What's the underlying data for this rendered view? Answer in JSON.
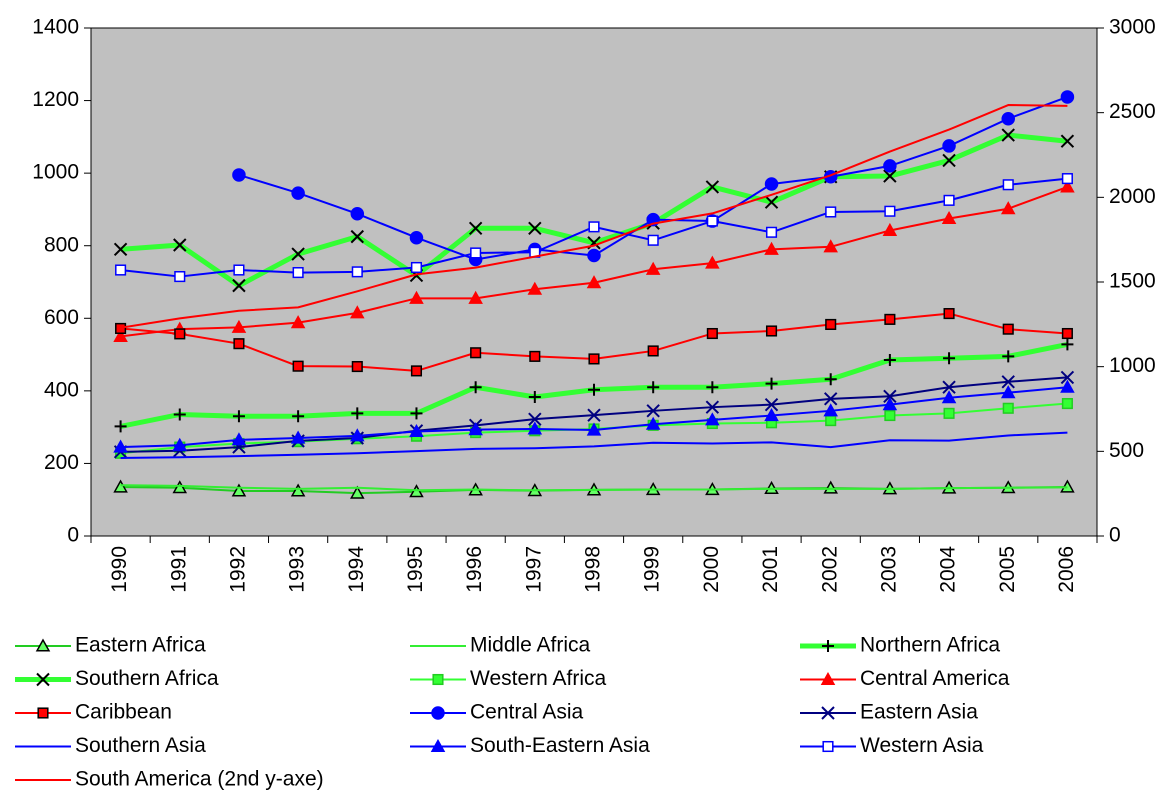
{
  "chart_data": {
    "type": "line",
    "categories": [
      "1990",
      "1991",
      "1992",
      "1993",
      "1994",
      "1995",
      "1996",
      "1997",
      "1998",
      "1999",
      "2000",
      "2001",
      "2002",
      "2003",
      "2004",
      "2005",
      "2006"
    ],
    "ylim": [
      0,
      1400
    ],
    "yticks": [
      0,
      200,
      400,
      600,
      800,
      1000,
      1200,
      1400
    ],
    "y2lim": [
      0,
      3000
    ],
    "y2ticks": [
      0,
      500,
      1000,
      1500,
      2000,
      2500,
      3000
    ],
    "plot_background": "#c0c0c0",
    "series": [
      {
        "name": "Eastern Africa",
        "color": "#22cc22",
        "width": 2,
        "marker": "triangle",
        "marker_fill": "#66ff66",
        "marker_edge": "#000000",
        "values": [
          135,
          133,
          124,
          124,
          118,
          122,
          127,
          125,
          127,
          128,
          128,
          131,
          132,
          130,
          132,
          133,
          135
        ]
      },
      {
        "name": "Middle Africa",
        "color": "#33ee33",
        "width": 2,
        "marker": "none",
        "values": [
          140,
          138,
          133,
          130,
          133,
          126,
          128,
          126,
          127,
          128,
          128,
          130,
          130,
          130,
          132,
          133,
          134
        ]
      },
      {
        "name": "Northern Africa",
        "color": "#33ff33",
        "width": 5,
        "marker": "plus",
        "marker_fill": "#000000",
        "marker_edge": "#000000",
        "values": [
          302,
          335,
          330,
          330,
          338,
          338,
          410,
          383,
          403,
          410,
          410,
          420,
          432,
          485,
          490,
          495,
          528
        ]
      },
      {
        "name": "Southern Africa",
        "color": "#33ff33",
        "width": 5,
        "marker": "x",
        "marker_fill": "#000000",
        "marker_edge": "#000000",
        "values": [
          790,
          802,
          690,
          777,
          825,
          718,
          848,
          848,
          808,
          862,
          962,
          920,
          990,
          992,
          1035,
          1105,
          1088
        ]
      },
      {
        "name": "Western Africa",
        "color": "#33ff33",
        "width": 2,
        "marker": "square",
        "marker_fill": "#33ff33",
        "marker_edge": "#22cc22",
        "values": [
          228,
          245,
          255,
          260,
          268,
          275,
          285,
          290,
          295,
          305,
          310,
          312,
          318,
          332,
          338,
          352,
          365
        ]
      },
      {
        "name": "Central America",
        "color": "#ff0000",
        "width": 2,
        "marker": "triangle",
        "marker_fill": "#ff0000",
        "marker_edge": "#ff0000",
        "values": [
          550,
          570,
          575,
          588,
          615,
          655,
          655,
          680,
          698,
          735,
          752,
          790,
          797,
          842,
          875,
          902,
          962
        ]
      },
      {
        "name": "Caribbean",
        "color": "#ff0000",
        "width": 2,
        "marker": "square",
        "marker_fill": "#ff0000",
        "marker_edge": "#000000",
        "values": [
          572,
          557,
          530,
          468,
          467,
          455,
          505,
          495,
          488,
          510,
          558,
          565,
          583,
          597,
          613,
          570,
          558
        ]
      },
      {
        "name": "Central Asia",
        "color": "#0000ff",
        "width": 2,
        "marker": "circle",
        "marker_fill": "#0000ff",
        "marker_edge": "#0000ff",
        "values": [
          null,
          null,
          995,
          945,
          888,
          822,
          762,
          790,
          773,
          872,
          868,
          970,
          990,
          1020,
          1075,
          1150,
          1210
        ]
      },
      {
        "name": "Eastern Asia",
        "color": "#000080",
        "width": 2,
        "marker": "x",
        "marker_fill": "#000080",
        "marker_edge": "#000080",
        "values": [
          232,
          235,
          245,
          262,
          270,
          290,
          305,
          322,
          333,
          345,
          355,
          362,
          378,
          385,
          410,
          425,
          437
        ]
      },
      {
        "name": "Southern Asia",
        "color": "#0000ff",
        "width": 2,
        "marker": "none",
        "values": [
          215,
          217,
          220,
          224,
          228,
          234,
          240,
          242,
          247,
          257,
          255,
          258,
          245,
          264,
          263,
          277,
          285
        ]
      },
      {
        "name": "South-Eastern Asia",
        "color": "#0000ff",
        "width": 2,
        "marker": "triangle",
        "marker_fill": "#0000ff",
        "marker_edge": "#0000ff",
        "values": [
          245,
          250,
          265,
          270,
          276,
          288,
          293,
          295,
          292,
          308,
          320,
          332,
          345,
          362,
          381,
          395,
          410
        ]
      },
      {
        "name": "Western Asia",
        "color": "#0000ff",
        "width": 2,
        "marker": "square",
        "marker_fill": "#ffffff",
        "marker_edge": "#0000ff",
        "values": [
          733,
          715,
          733,
          726,
          728,
          740,
          780,
          782,
          852,
          815,
          868,
          837,
          893,
          895,
          925,
          968,
          985
        ]
      },
      {
        "name": "South America (2nd y-axe)",
        "color": "#ff0000",
        "width": 2,
        "marker": "none",
        "axis": "y2",
        "values": [
          1230,
          1285,
          1330,
          1350,
          1445,
          1545,
          1585,
          1650,
          1715,
          1845,
          1905,
          2015,
          2130,
          2270,
          2400,
          2545,
          2540
        ]
      }
    ]
  }
}
